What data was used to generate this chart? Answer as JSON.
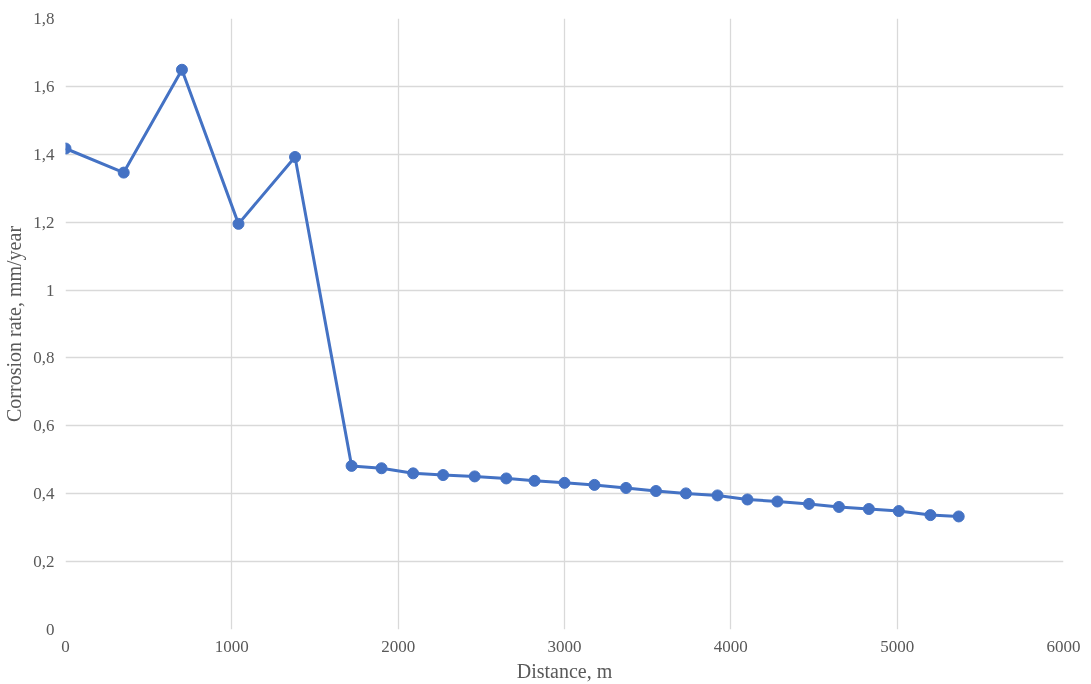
{
  "chart_data": {
    "type": "line",
    "xlabel": "Distance, m",
    "ylabel": "Corrosion rate, mm/year",
    "x": [
      0,
      350,
      700,
      1040,
      1380,
      1720,
      1900,
      2090,
      2270,
      2460,
      2650,
      2820,
      3000,
      3180,
      3370,
      3550,
      3730,
      3920,
      4100,
      4280,
      4470,
      4650,
      4830,
      5010,
      5200,
      5370
    ],
    "series": [
      {
        "color": "#4472c4",
        "values": [
          1.417,
          1.346,
          1.649,
          1.195,
          1.392,
          0.482,
          0.475,
          0.46,
          0.455,
          0.451,
          0.445,
          0.438,
          0.432,
          0.426,
          0.417,
          0.408,
          0.401,
          0.395,
          0.383,
          0.377,
          0.37,
          0.361,
          0.355,
          0.349,
          0.337,
          0.333
        ]
      }
    ],
    "xlim": [
      0,
      6000
    ],
    "xticks": [
      0,
      1000,
      2000,
      3000,
      4000,
      5000,
      6000
    ],
    "ylim": [
      0,
      1.8
    ],
    "yticks": [
      0,
      {
        "value": 0.2,
        "label": "0,2"
      },
      {
        "value": 0.4,
        "label": "0,4"
      },
      {
        "value": 0.6,
        "label": "0,6"
      },
      {
        "value": 0.8,
        "label": "0,8"
      },
      1,
      {
        "value": 1.2,
        "label": "1,2"
      },
      {
        "value": 1.4,
        "label": "1,4"
      },
      {
        "value": 1.6,
        "label": "1,6"
      },
      {
        "value": 1.8,
        "label": "1,8"
      }
    ],
    "grid": true,
    "marker": "circle",
    "line_style": "solid"
  }
}
